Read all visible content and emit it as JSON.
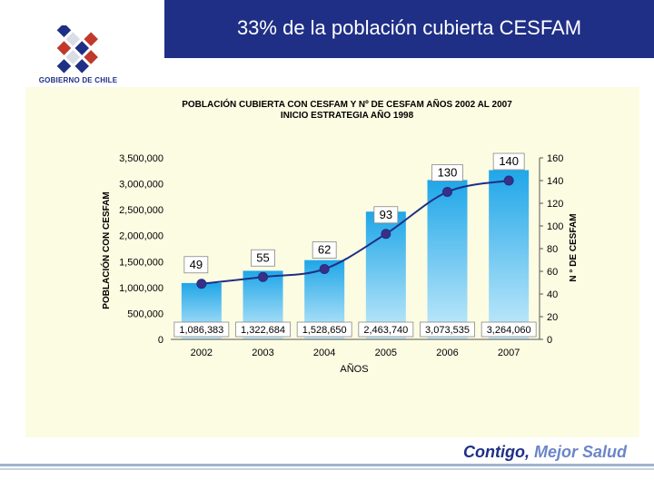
{
  "slide": {
    "title": "33% de la población cubierta CESFAM",
    "logo_text": "GOBIERNO DE CHILE",
    "slogan_part1": "Contigo,",
    "slogan_part2": " Mejor Salud"
  },
  "colors": {
    "header": "#1f2f86",
    "chart_bg": "#fcfce3",
    "bar_top": "#1fa6e8",
    "bar_bottom": "#c8ecfb",
    "line": "#1f2f86",
    "marker": "#3a2f86"
  },
  "chart_data": {
    "type": "bar",
    "title": "POBLACIÓN CUBIERTA CON CESFAM Y Nº DE CESFAM AÑOS 2002 AL 2007",
    "subtitle": "INICIO ESTRATEGIA AÑO 1998",
    "xlabel": "AÑOS",
    "ylabel": "POBLACIÓN CON CESFAM",
    "y2label": "N ° DE CESFAM",
    "categories": [
      "2002",
      "2003",
      "2004",
      "2005",
      "2006",
      "2007"
    ],
    "series": [
      {
        "axis": "left",
        "kind": "bar",
        "values": [
          1086383,
          1322684,
          1528650,
          2463740,
          3073535,
          3264060
        ],
        "value_labels": [
          "1,086,383",
          "1,322,684",
          "1,528,650",
          "2,463,740",
          "3,073,535",
          "3,264,060"
        ]
      },
      {
        "axis": "right",
        "kind": "line",
        "values": [
          49,
          55,
          62,
          93,
          130,
          140
        ],
        "value_labels": [
          "49",
          "55",
          "62",
          "93",
          "130",
          "140"
        ]
      }
    ],
    "ylim": [
      0,
      3500000
    ],
    "y_ticks": [
      0,
      500000,
      1000000,
      1500000,
      2000000,
      2500000,
      3000000,
      3500000
    ],
    "y_tick_labels": [
      "0",
      "500,000",
      "1,000,000",
      "1,500,000",
      "2,000,000",
      "2,500,000",
      "3,000,000",
      "3,500,000"
    ],
    "y2lim": [
      0,
      160
    ],
    "y2_ticks": [
      0,
      20,
      40,
      60,
      80,
      100,
      120,
      140,
      160
    ],
    "y2_tick_labels": [
      "0",
      "20",
      "40",
      "60",
      "80",
      "100",
      "120",
      "140",
      "160"
    ],
    "grid": false,
    "legend": "none"
  }
}
